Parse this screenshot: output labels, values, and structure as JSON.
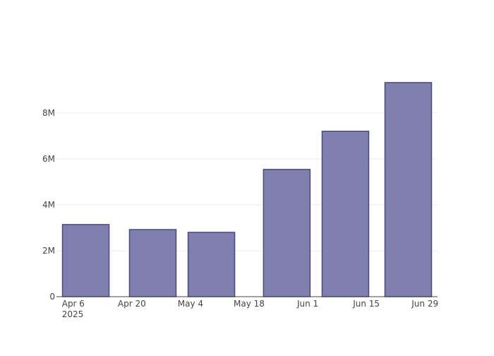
{
  "chart_data": {
    "type": "bar",
    "x": [
      "2025-04-09",
      "2025-04-25",
      "2025-05-09",
      "2025-05-27",
      "2025-06-10",
      "2025-06-25"
    ],
    "values": [
      3140000,
      2920000,
      2800000,
      5540000,
      7200000,
      9320000
    ],
    "color": "#7f7fb0",
    "edge_color": "#4a4a7e",
    "xlim": [
      "2025-04-02",
      "2025-07-02"
    ],
    "xticks": [
      {
        "value": "2025-04-06",
        "label": "Apr 6\n2025"
      },
      {
        "value": "2025-04-20",
        "label": "Apr 20"
      },
      {
        "value": "2025-05-04",
        "label": "May 4"
      },
      {
        "value": "2025-05-18",
        "label": "May 18"
      },
      {
        "value": "2025-06-01",
        "label": "Jun 1"
      },
      {
        "value": "2025-06-15",
        "label": "Jun 15"
      },
      {
        "value": "2025-06-29",
        "label": "Jun 29"
      }
    ],
    "ylim": [
      0,
      9840000
    ],
    "yticks": [
      0,
      {
        "value": 2000000,
        "label": "2M"
      },
      {
        "value": 4000000,
        "label": "4M"
      },
      {
        "value": 6000000,
        "label": "6M"
      },
      {
        "value": 8000000,
        "label": "8M"
      }
    ],
    "grid": true
  }
}
